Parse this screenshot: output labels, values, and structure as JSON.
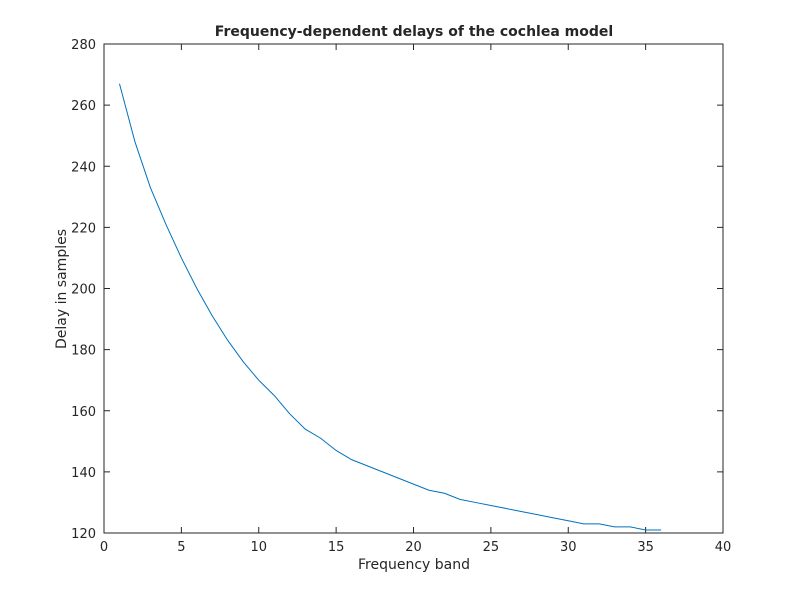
{
  "chart_data": {
    "type": "line",
    "title": "Frequency-dependent delays of the cochlea model",
    "x_label": "Frequency band",
    "y_label": "Delay in samples",
    "x": [
      1,
      2,
      3,
      4,
      5,
      6,
      7,
      8,
      9,
      10,
      11,
      12,
      13,
      14,
      15,
      16,
      17,
      18,
      19,
      20,
      21,
      22,
      23,
      24,
      25,
      26,
      27,
      28,
      29,
      30,
      31,
      32,
      33,
      34,
      35,
      36
    ],
    "series": [
      {
        "name": "Delay",
        "color": "#0072bd",
        "values": [
          267,
          248,
          233,
          221,
          210,
          200,
          191,
          183,
          176,
          170,
          165,
          159,
          154,
          151,
          147,
          144,
          142,
          140,
          138,
          136,
          134,
          133,
          131,
          130,
          129,
          128,
          127,
          126,
          125,
          124,
          123,
          123,
          122,
          122,
          121,
          121
        ]
      }
    ],
    "xlim": [
      0,
      40
    ],
    "xticks": [
      0,
      5,
      10,
      15,
      20,
      25,
      30,
      35,
      40
    ],
    "ylim": [
      120,
      280
    ],
    "yticks": [
      120,
      140,
      160,
      180,
      200,
      220,
      240,
      260,
      280
    ],
    "grid": false
  }
}
